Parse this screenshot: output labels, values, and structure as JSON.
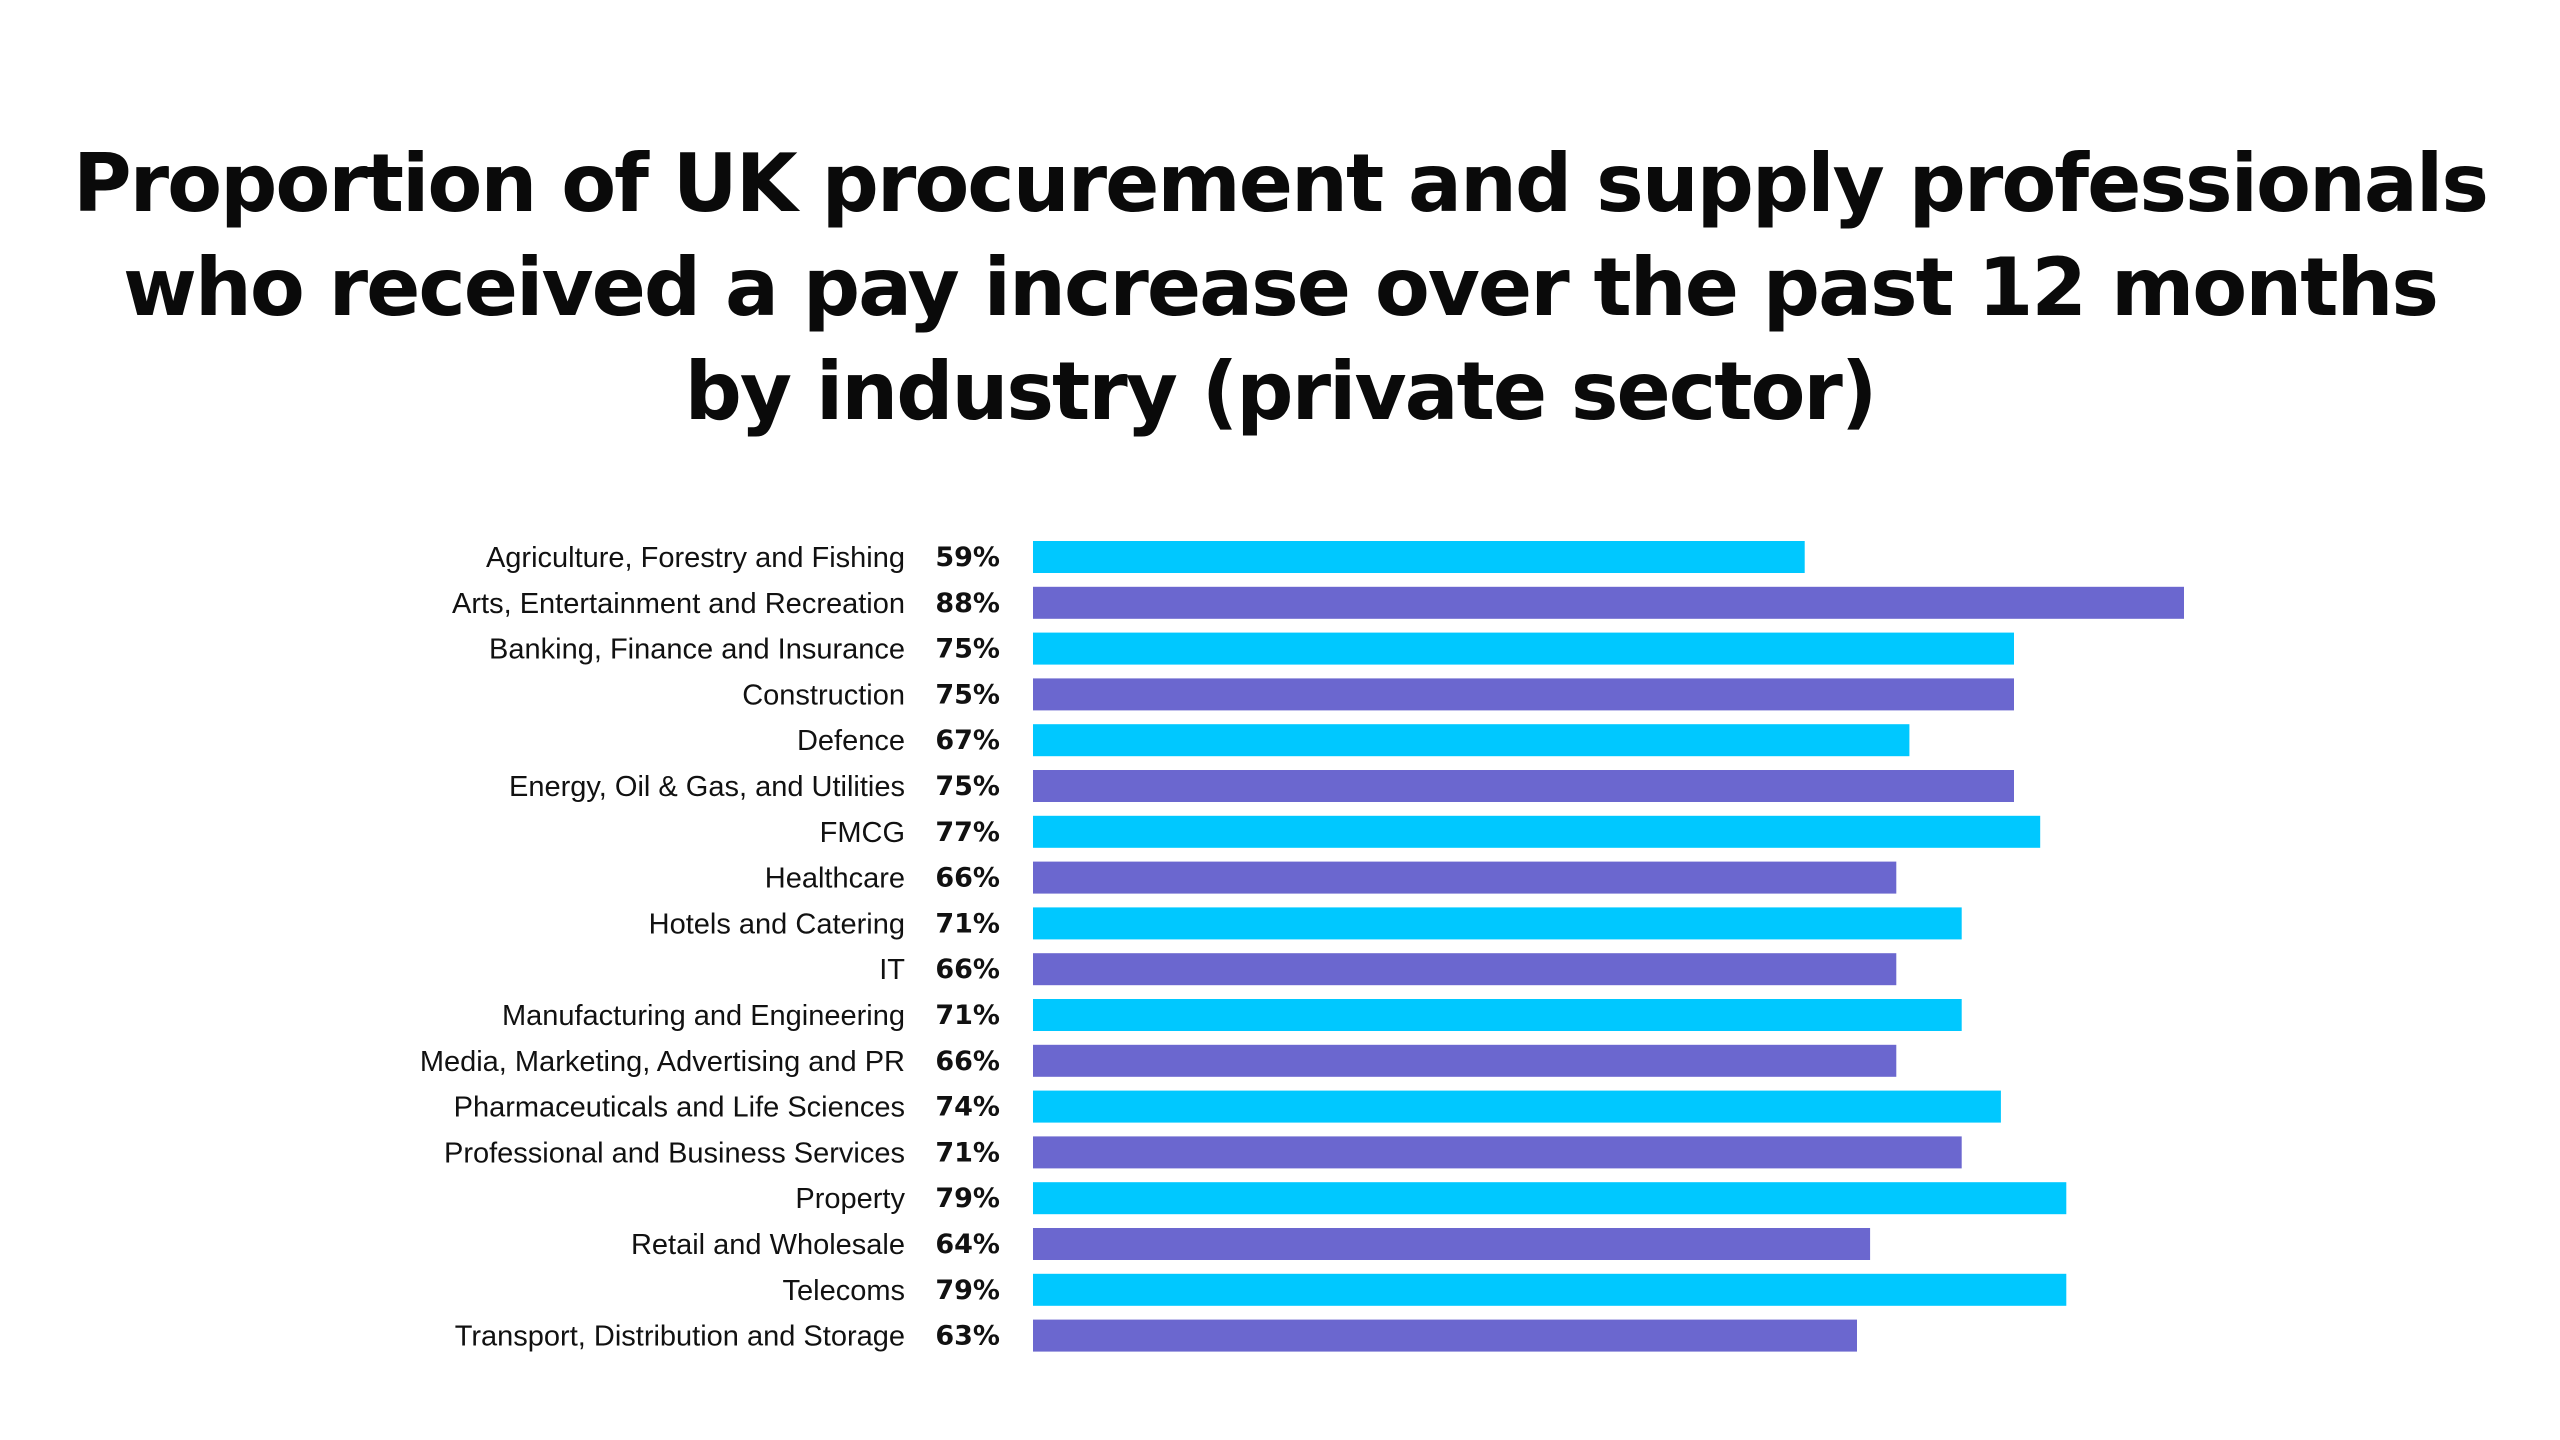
{
  "chart_data": {
    "type": "bar",
    "orientation": "horizontal",
    "title_lines": [
      "Proportion of UK procurement and supply professionals",
      "who received a pay increase over the past 12 months",
      "by industry (private sector)"
    ],
    "categories": [
      "Agriculture, Forestry and Fishing",
      "Arts, Entertainment and Recreation",
      "Banking, Finance and Insurance",
      "Construction",
      "Defence",
      "Energy, Oil & Gas, and Utilities",
      "FMCG",
      "Healthcare",
      "Hotels and Catering",
      "IT",
      "Manufacturing and Engineering",
      "Media, Marketing, Advertising and PR",
      "Pharmaceuticals and Life Sciences",
      "Professional and Business Services",
      "Property",
      "Retail and Wholesale",
      "Telecoms",
      "Transport, Distribution and Storage"
    ],
    "values": [
      59,
      88,
      75,
      75,
      67,
      75,
      77,
      66,
      71,
      66,
      71,
      66,
      74,
      71,
      79,
      64,
      79,
      63
    ],
    "value_labels": [
      "59%",
      "88%",
      "75%",
      "75%",
      "67%",
      "75%",
      "77%",
      "66%",
      "71%",
      "66%",
      "71%",
      "66%",
      "74%",
      "71%",
      "79%",
      "64%",
      "79%",
      "63%"
    ],
    "unit": "%",
    "xlim": [
      0,
      100
    ],
    "grid": false,
    "legend": "none",
    "colors": [
      "#00c8ff",
      "#6b67cf"
    ]
  }
}
